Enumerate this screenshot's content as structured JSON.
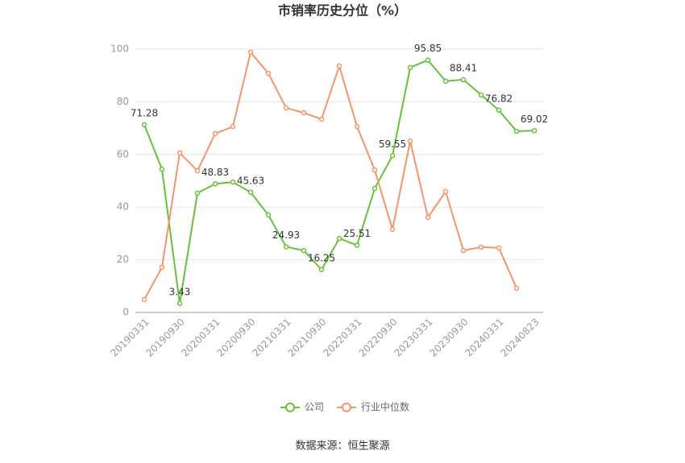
{
  "chart_data": {
    "type": "line",
    "title": "市销率历史分位（%）",
    "source": "数据来源：恒生聚源",
    "categories": [
      "20190331",
      null,
      "20190930",
      null,
      "20200331",
      null,
      "20200930",
      null,
      "20210331",
      null,
      "20210930",
      null,
      "20220331",
      null,
      "20220930",
      null,
      "20230331",
      null,
      "20230930",
      null,
      "20240331",
      null,
      "20240823"
    ],
    "series": [
      {
        "name": "公司",
        "color": "#67c23a",
        "values": [
          71.28,
          54.4,
          3.43,
          45.3,
          48.83,
          49.5,
          45.63,
          37.0,
          24.93,
          23.5,
          16.25,
          28.1,
          25.51,
          47.1,
          59.55,
          93.0,
          95.85,
          87.8,
          88.41,
          82.6,
          76.82,
          68.8,
          69.02
        ],
        "value_labels": [
          "71.28",
          null,
          "3.43",
          null,
          "48.83",
          null,
          "45.63",
          null,
          "24.93",
          null,
          "16.25",
          null,
          "25.51",
          null,
          "59.55",
          null,
          "95.85",
          null,
          "88.41",
          null,
          "76.82",
          null,
          "69.02"
        ]
      },
      {
        "name": "行业中位数",
        "color": "#f4956b",
        "values": [
          4.9,
          17.1,
          60.6,
          53.8,
          67.9,
          70.6,
          98.8,
          90.8,
          77.7,
          75.8,
          73.4,
          93.6,
          70.6,
          54.1,
          31.5,
          65.1,
          36.1,
          45.9,
          23.5,
          24.8,
          24.5,
          9.2,
          null
        ]
      }
    ],
    "ylim": [
      0,
      100
    ],
    "yticks": [
      0,
      20,
      40,
      60,
      80,
      100
    ],
    "grid": true,
    "legend": "bottom"
  }
}
